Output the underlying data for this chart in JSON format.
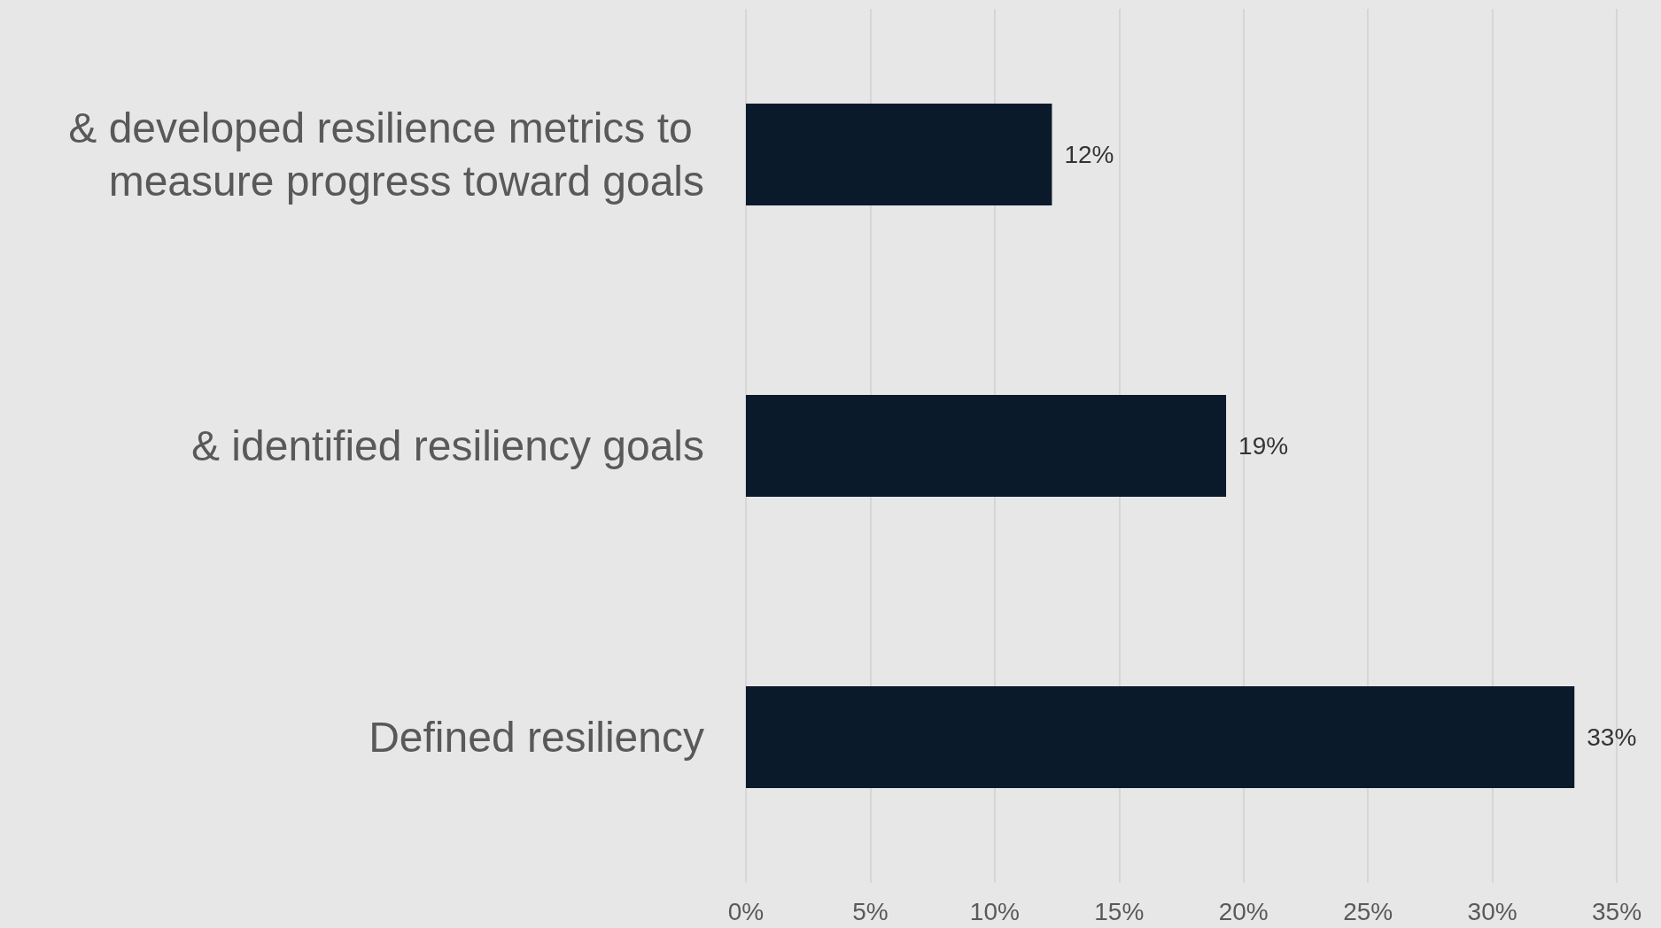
{
  "chart_data": {
    "type": "bar",
    "orientation": "horizontal",
    "categories": [
      "& developed resilience metrics to measure progress toward goals",
      "& identified resiliency goals",
      "Defined resiliency"
    ],
    "values": [
      12.3,
      19.3,
      33.3
    ],
    "value_labels": [
      "12%",
      "19%",
      "33%"
    ],
    "color": "#0b1a2b",
    "xlim": [
      0,
      35
    ],
    "xticks": [
      {
        "value": 0,
        "label": "0%"
      },
      {
        "value": 5,
        "label": "5%"
      },
      {
        "value": 10,
        "label": "10%"
      },
      {
        "value": 15,
        "label": "15%"
      },
      {
        "value": 20,
        "label": "20%"
      },
      {
        "value": 25,
        "label": "25%"
      },
      {
        "value": 30,
        "label": "30%"
      },
      {
        "value": 35,
        "label": "35%"
      }
    ],
    "grid": "x"
  }
}
